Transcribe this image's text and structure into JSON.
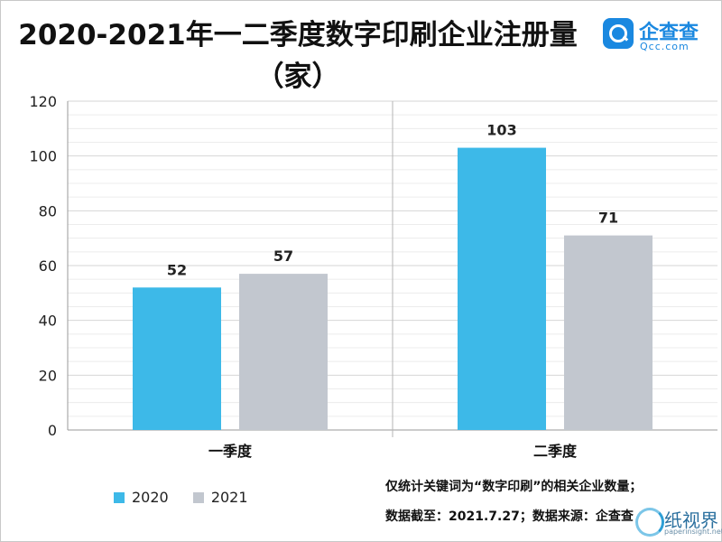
{
  "title": "2020-2021年一二季度数字印刷企业注册量",
  "title_line2": "（家）",
  "logo": {
    "name": "企查查",
    "sub": "Qcc.com",
    "icon": "magnifier-icon"
  },
  "notes": [
    "仅统计关键词为“数字印刷”的相关企业数量；",
    "数据截至：2021.7.27；数据来源：企查查"
  ],
  "watermark": {
    "name": "纸视界",
    "sub": "paperinsight.net"
  },
  "colors": {
    "s2020": "#3db9e8",
    "s2021": "#c2c7cf"
  },
  "chart_data": {
    "type": "bar",
    "categories": [
      "一季度",
      "二季度"
    ],
    "series": [
      {
        "name": "2020",
        "values": [
          52,
          103
        ]
      },
      {
        "name": "2021",
        "values": [
          57,
          71
        ]
      }
    ],
    "ylim": [
      0,
      120
    ],
    "yticks": [
      0,
      20,
      40,
      60,
      80,
      100,
      120
    ],
    "grid": true,
    "legend": "bottom-left"
  }
}
